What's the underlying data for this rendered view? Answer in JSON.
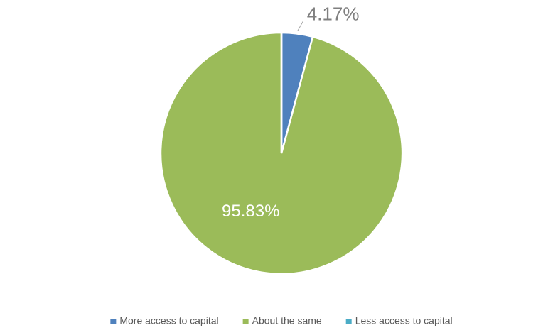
{
  "chart_data": {
    "type": "pie",
    "categories": [
      "More access to capital",
      "About the same",
      "Less access to capital"
    ],
    "values": [
      4.17,
      95.83,
      0
    ],
    "value_labels": [
      "4.17%",
      "95.83%",
      null
    ],
    "colors": [
      "#4f81bd",
      "#9bbb59",
      "#4bacc6"
    ],
    "legend": "bottom"
  }
}
